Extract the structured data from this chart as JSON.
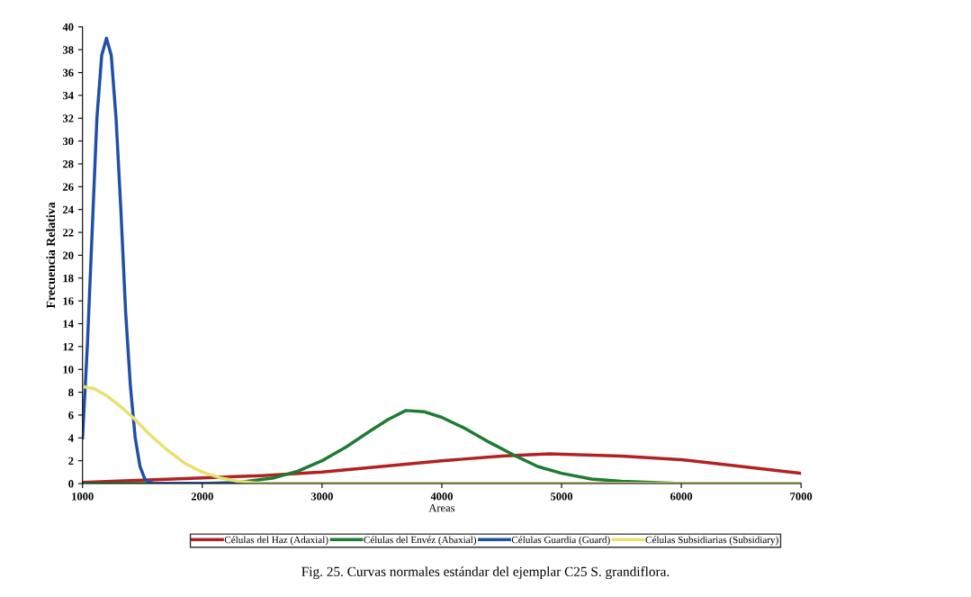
{
  "chart_data": {
    "type": "line",
    "xlabel": "Areas",
    "ylabel": "Frecuencia Relativa",
    "xlim": [
      1000,
      7000
    ],
    "xticks": [
      1000,
      2000,
      3000,
      4000,
      5000,
      6000,
      7000
    ],
    "ylim": [
      0,
      40
    ],
    "yticks": [
      0,
      2,
      4,
      6,
      8,
      10,
      12,
      14,
      16,
      18,
      20,
      22,
      24,
      26,
      28,
      30,
      32,
      34,
      36,
      38,
      40
    ],
    "grid": false,
    "legend": "bottom",
    "marker": "none",
    "line_style": "solid",
    "annotations": [
      "Fig. 25. Curvas normales estándar del ejemplar C25 S. grandiflora."
    ],
    "series": [
      {
        "name": "Células del Haz (Adaxial)",
        "color": "#b22222",
        "x": [
          1000,
          1500,
          2000,
          2500,
          3000,
          3500,
          4000,
          4500,
          4900,
          5500,
          6000,
          6500,
          7000
        ],
        "values": [
          0.1,
          0.3,
          0.5,
          0.7,
          1.0,
          1.5,
          2.0,
          2.4,
          2.6,
          2.4,
          2.1,
          1.5,
          0.9
        ]
      },
      {
        "name": "Células del Envéz (Abaxial)",
        "color": "#1e7b32",
        "x": [
          1000,
          2000,
          2300,
          2600,
          2800,
          3000,
          3200,
          3400,
          3550,
          3700,
          3850,
          4000,
          4200,
          4400,
          4600,
          4800,
          5000,
          5250,
          5500,
          6000,
          7000
        ],
        "values": [
          0,
          0,
          0.1,
          0.5,
          1.1,
          2.0,
          3.2,
          4.6,
          5.6,
          6.4,
          6.3,
          5.8,
          4.8,
          3.6,
          2.5,
          1.5,
          0.9,
          0.4,
          0.2,
          0,
          0
        ]
      },
      {
        "name": "Células Guardia (Guard)",
        "color": "#1f4fa8",
        "x": [
          1000,
          1040,
          1080,
          1120,
          1160,
          1200,
          1240,
          1280,
          1320,
          1360,
          1400,
          1440,
          1480,
          1520,
          1560,
          1600,
          2000,
          7000
        ],
        "values": [
          4,
          12,
          22,
          32,
          37.5,
          39,
          37.5,
          32,
          24,
          15,
          8.5,
          4,
          1.5,
          0.4,
          0.1,
          0,
          0,
          0
        ]
      },
      {
        "name": "Células Subsidiarias (Subsidiary)",
        "color": "#e8e070",
        "x": [
          1000,
          1100,
          1200,
          1300,
          1420,
          1550,
          1700,
          1850,
          2000,
          2150,
          2300,
          2500,
          7000
        ],
        "values": [
          8.5,
          8.3,
          7.7,
          6.9,
          5.8,
          4.4,
          3.0,
          1.8,
          1.0,
          0.5,
          0.2,
          0,
          0
        ]
      }
    ]
  }
}
